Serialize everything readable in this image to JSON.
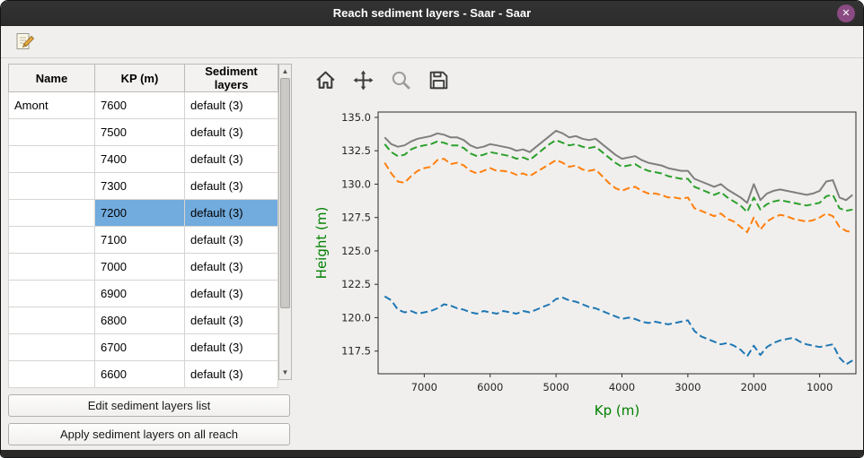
{
  "window": {
    "title": "Reach sediment layers - Saar - Saar"
  },
  "icons": {
    "close": "✕",
    "scroll_up": "▲",
    "scroll_down": "▼"
  },
  "table": {
    "headers": [
      "Name",
      "KP (m)",
      "Sediment layers"
    ],
    "selected_kp": "7200",
    "rows": [
      {
        "name": "Amont",
        "kp": "7600",
        "layers": "default (3)"
      },
      {
        "name": "",
        "kp": "7500",
        "layers": "default (3)"
      },
      {
        "name": "",
        "kp": "7400",
        "layers": "default (3)"
      },
      {
        "name": "",
        "kp": "7300",
        "layers": "default (3)"
      },
      {
        "name": "",
        "kp": "7200",
        "layers": "default (3)"
      },
      {
        "name": "",
        "kp": "7100",
        "layers": "default (3)"
      },
      {
        "name": "",
        "kp": "7000",
        "layers": "default (3)"
      },
      {
        "name": "",
        "kp": "6900",
        "layers": "default (3)"
      },
      {
        "name": "",
        "kp": "6800",
        "layers": "default (3)"
      },
      {
        "name": "",
        "kp": "6700",
        "layers": "default (3)"
      },
      {
        "name": "",
        "kp": "6600",
        "layers": "default (3)"
      }
    ]
  },
  "buttons": {
    "edit_list": "Edit sediment layers list",
    "apply_all": "Apply sediment layers on all reach"
  },
  "plot_toolbar": {
    "icons": [
      "home",
      "pan-axes",
      "zoom-to-rectangle",
      "save-figure"
    ]
  },
  "chart_data": {
    "type": "line",
    "title": "",
    "xlabel": "Kp (m)",
    "ylabel": "Height (m)",
    "label_color": "#008000",
    "x_reversed": true,
    "xlim": [
      7700,
      450
    ],
    "ylim": [
      115.8,
      135.4
    ],
    "xticks": [
      7000,
      6000,
      5000,
      4000,
      3000,
      2000,
      1000
    ],
    "yticks": [
      135.0,
      132.5,
      130.0,
      127.5,
      125.0,
      122.5,
      120.0,
      117.5
    ],
    "x": [
      7600,
      7500,
      7400,
      7300,
      7200,
      7100,
      7000,
      6900,
      6800,
      6700,
      6600,
      6500,
      6400,
      6300,
      6200,
      6100,
      6000,
      5900,
      5800,
      5700,
      5600,
      5500,
      5400,
      5300,
      5200,
      5100,
      5000,
      4900,
      4800,
      4700,
      4600,
      4500,
      4400,
      4300,
      4200,
      4100,
      4000,
      3900,
      3800,
      3700,
      3600,
      3500,
      3400,
      3300,
      3200,
      3100,
      3000,
      2900,
      2800,
      2700,
      2600,
      2500,
      2400,
      2300,
      2200,
      2100,
      2000,
      1900,
      1800,
      1700,
      1600,
      1500,
      1400,
      1300,
      1200,
      1100,
      1000,
      900,
      800,
      700,
      600,
      500
    ],
    "series": [
      {
        "name": "top-level-gray",
        "color": "#7f7f7f",
        "dash": null,
        "values": [
          133.5,
          133.0,
          132.8,
          132.9,
          133.2,
          133.4,
          133.5,
          133.6,
          133.8,
          133.7,
          133.5,
          133.5,
          133.3,
          132.9,
          132.7,
          132.8,
          133.0,
          132.9,
          132.8,
          132.7,
          132.5,
          132.6,
          132.4,
          132.8,
          133.2,
          133.6,
          134.0,
          133.8,
          133.5,
          133.6,
          133.4,
          133.3,
          133.4,
          133.0,
          132.6,
          132.2,
          131.9,
          132.0,
          132.1,
          131.8,
          131.6,
          131.5,
          131.4,
          131.2,
          131.1,
          131.0,
          131.0,
          130.4,
          130.2,
          130.0,
          129.8,
          130.0,
          129.6,
          129.3,
          129.0,
          128.6,
          130.0,
          128.8,
          129.3,
          129.5,
          129.6,
          129.5,
          129.4,
          129.3,
          129.2,
          129.3,
          129.5,
          130.2,
          130.3,
          129.0,
          128.8,
          129.2
        ]
      },
      {
        "name": "sediment-layer-green",
        "color": "#2ca02c",
        "dash": "8 4",
        "values": [
          133.0,
          132.4,
          132.1,
          132.2,
          132.6,
          132.8,
          132.9,
          133.0,
          133.2,
          133.1,
          132.9,
          132.9,
          132.7,
          132.3,
          132.1,
          132.2,
          132.4,
          132.3,
          132.2,
          132.1,
          131.9,
          132.0,
          131.8,
          132.2,
          132.6,
          133.0,
          133.3,
          133.1,
          132.9,
          133.0,
          132.8,
          132.7,
          132.8,
          132.4,
          132.0,
          131.6,
          131.3,
          131.4,
          131.5,
          131.2,
          131.0,
          130.9,
          130.8,
          130.6,
          130.5,
          130.4,
          130.4,
          129.8,
          129.6,
          129.4,
          129.2,
          129.4,
          129.0,
          128.7,
          128.4,
          127.9,
          129.0,
          128.1,
          128.5,
          128.7,
          128.8,
          128.7,
          128.6,
          128.5,
          128.4,
          128.5,
          128.6,
          129.1,
          129.2,
          128.2,
          128.0,
          128.1
        ]
      },
      {
        "name": "sediment-layer-orange",
        "color": "#ff7f0e",
        "dash": "8 4",
        "values": [
          131.6,
          130.8,
          130.2,
          130.1,
          130.6,
          131.0,
          131.2,
          131.3,
          131.8,
          131.9,
          131.5,
          131.6,
          131.4,
          131.0,
          130.8,
          131.0,
          131.2,
          131.0,
          131.0,
          130.9,
          130.7,
          130.8,
          130.6,
          130.9,
          131.2,
          131.5,
          131.8,
          131.6,
          131.3,
          131.4,
          131.1,
          131.0,
          131.1,
          130.6,
          130.1,
          129.7,
          129.5,
          129.7,
          129.8,
          129.5,
          129.3,
          129.3,
          129.2,
          129.0,
          129.0,
          128.9,
          129.0,
          128.2,
          128.0,
          127.8,
          127.6,
          127.8,
          127.4,
          127.2,
          126.8,
          126.4,
          127.5,
          126.6,
          127.2,
          127.5,
          127.7,
          127.6,
          127.4,
          127.3,
          127.2,
          127.3,
          127.5,
          127.8,
          127.6,
          126.8,
          126.5,
          126.4
        ]
      },
      {
        "name": "bottom-level-blue",
        "color": "#1f77b4",
        "dash": "8 4",
        "values": [
          121.6,
          121.3,
          120.6,
          120.4,
          120.5,
          120.3,
          120.4,
          120.5,
          120.7,
          121.0,
          120.9,
          120.7,
          120.6,
          120.4,
          120.3,
          120.5,
          120.4,
          120.3,
          120.5,
          120.4,
          120.3,
          120.5,
          120.4,
          120.6,
          120.8,
          121.0,
          121.4,
          121.5,
          121.3,
          121.2,
          121.0,
          120.8,
          120.7,
          120.5,
          120.3,
          120.1,
          119.9,
          120.0,
          119.9,
          119.7,
          119.6,
          119.7,
          119.6,
          119.5,
          119.6,
          119.7,
          119.8,
          119.0,
          118.6,
          118.4,
          118.2,
          118.0,
          118.1,
          117.9,
          117.6,
          117.1,
          117.9,
          117.2,
          117.8,
          118.1,
          118.3,
          118.4,
          118.5,
          118.2,
          118.0,
          117.9,
          117.8,
          117.9,
          118.0,
          117.0,
          116.5,
          116.8
        ]
      }
    ]
  }
}
